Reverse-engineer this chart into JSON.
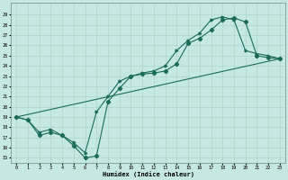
{
  "xlabel": "Humidex (Indice chaleur)",
  "xlim": [
    -0.5,
    23.5
  ],
  "ylim": [
    14.5,
    30.2
  ],
  "xticks": [
    0,
    1,
    2,
    3,
    4,
    5,
    6,
    7,
    8,
    9,
    10,
    11,
    12,
    13,
    14,
    15,
    16,
    17,
    18,
    19,
    20,
    21,
    22,
    23
  ],
  "yticks": [
    15,
    16,
    17,
    18,
    19,
    20,
    21,
    22,
    23,
    24,
    25,
    26,
    27,
    28,
    29
  ],
  "bg_color": "#c5e8e2",
  "line_color": "#1a6b5a",
  "grid_color": "#b0d4cc",
  "line1_x": [
    0,
    1,
    2,
    3,
    4,
    5,
    6,
    7,
    8,
    9,
    10,
    11,
    12,
    13,
    14,
    15,
    16,
    17,
    18,
    19,
    20,
    21,
    22,
    23
  ],
  "line1_y": [
    19.0,
    18.7,
    17.2,
    17.5,
    17.2,
    16.2,
    15.0,
    15.2,
    20.5,
    21.8,
    23.0,
    23.2,
    23.3,
    23.5,
    24.2,
    26.2,
    26.7,
    27.5,
    28.5,
    28.7,
    28.3,
    25.0,
    24.8,
    24.7
  ],
  "line2_x": [
    0,
    23
  ],
  "line2_y": [
    19.0,
    24.7
  ],
  "line3_x": [
    0,
    1,
    2,
    3,
    4,
    5,
    6,
    7,
    8,
    9,
    10,
    11,
    12,
    13,
    14,
    15,
    16,
    17,
    18,
    19,
    20,
    21,
    22,
    23
  ],
  "line3_y": [
    19.0,
    18.7,
    17.5,
    17.8,
    17.2,
    16.5,
    15.5,
    19.5,
    21.0,
    22.5,
    23.0,
    23.3,
    23.5,
    24.0,
    25.5,
    26.5,
    27.2,
    28.5,
    28.8,
    28.5,
    25.5,
    25.2,
    25.0,
    24.7
  ]
}
